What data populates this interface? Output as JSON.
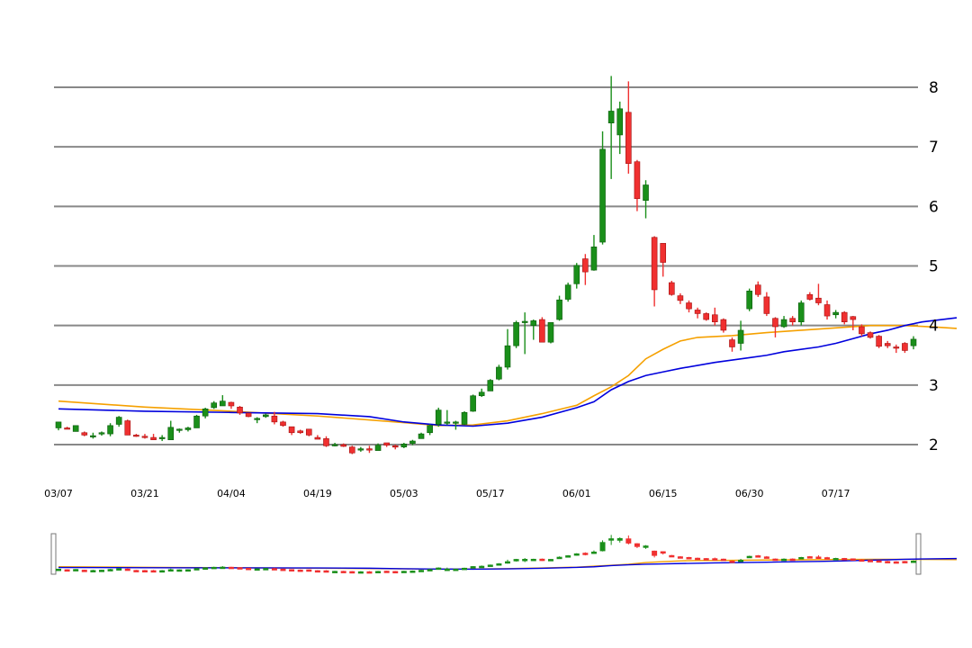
{
  "chart_data": {
    "type": "candlestick",
    "title": "",
    "ylim": [
      1.6,
      8.4
    ],
    "y_ticks": [
      2,
      3,
      4,
      5,
      6,
      7,
      8
    ],
    "y_tick_labels": [
      "2",
      "3",
      "4",
      "5",
      "6",
      "7",
      "8"
    ],
    "x_tick_labels": [
      "03/07",
      "03/21",
      "04/04",
      "04/19",
      "05/03",
      "05/17",
      "06/01",
      "06/15",
      "06/30",
      "07/17"
    ],
    "x_tick_index": [
      0,
      10,
      20,
      30,
      40,
      50,
      60,
      70,
      80,
      90
    ],
    "grid": "horizontal",
    "y_axis_side": "right",
    "colors": {
      "up": "#1a8f1a",
      "down": "#f03030",
      "ma_long": "#0000dd",
      "ma_short": "#f5a000",
      "grid": "#888888"
    },
    "candles": [
      [
        2.28,
        2.38,
        2.24,
        2.38
      ],
      [
        2.28,
        2.3,
        2.26,
        2.26
      ],
      [
        2.22,
        2.32,
        2.22,
        2.32
      ],
      [
        2.2,
        2.22,
        2.14,
        2.16
      ],
      [
        2.13,
        2.2,
        2.1,
        2.15
      ],
      [
        2.18,
        2.22,
        2.15,
        2.2
      ],
      [
        2.18,
        2.36,
        2.14,
        2.32
      ],
      [
        2.34,
        2.48,
        2.3,
        2.46
      ],
      [
        2.4,
        2.42,
        2.16,
        2.16
      ],
      [
        2.16,
        2.18,
        2.13,
        2.14
      ],
      [
        2.14,
        2.18,
        2.1,
        2.12
      ],
      [
        2.12,
        2.18,
        2.08,
        2.08
      ],
      [
        2.1,
        2.16,
        2.06,
        2.12
      ],
      [
        2.08,
        2.4,
        2.08,
        2.29
      ],
      [
        2.24,
        2.27,
        2.2,
        2.26
      ],
      [
        2.25,
        2.3,
        2.22,
        2.28
      ],
      [
        2.28,
        2.5,
        2.28,
        2.48
      ],
      [
        2.48,
        2.62,
        2.44,
        2.6
      ],
      [
        2.62,
        2.73,
        2.6,
        2.7
      ],
      [
        2.65,
        2.83,
        2.65,
        2.73
      ],
      [
        2.71,
        2.72,
        2.6,
        2.65
      ],
      [
        2.63,
        2.65,
        2.5,
        2.53
      ],
      [
        2.53,
        2.53,
        2.46,
        2.47
      ],
      [
        2.44,
        2.46,
        2.36,
        2.44
      ],
      [
        2.47,
        2.52,
        2.45,
        2.5
      ],
      [
        2.48,
        2.55,
        2.34,
        2.38
      ],
      [
        2.38,
        2.4,
        2.3,
        2.32
      ],
      [
        2.3,
        2.3,
        2.16,
        2.2
      ],
      [
        2.23,
        2.25,
        2.18,
        2.2
      ],
      [
        2.26,
        2.26,
        2.14,
        2.16
      ],
      [
        2.12,
        2.16,
        2.09,
        2.09
      ],
      [
        2.1,
        2.14,
        1.96,
        1.98
      ],
      [
        2.0,
        2.03,
        1.97,
        2.0
      ],
      [
        2.0,
        2.02,
        1.96,
        1.97
      ],
      [
        1.96,
        1.98,
        1.84,
        1.86
      ],
      [
        1.92,
        1.96,
        1.88,
        1.93
      ],
      [
        1.93,
        1.98,
        1.86,
        1.92
      ],
      [
        1.9,
        2.02,
        1.9,
        1.99
      ],
      [
        2.03,
        2.03,
        1.96,
        1.99
      ],
      [
        1.98,
        2.0,
        1.92,
        1.97
      ],
      [
        1.96,
        2.03,
        1.94,
        2.01
      ],
      [
        2.02,
        2.08,
        1.99,
        2.06
      ],
      [
        2.1,
        2.2,
        2.1,
        2.18
      ],
      [
        2.2,
        2.34,
        2.16,
        2.32
      ],
      [
        2.34,
        2.62,
        2.3,
        2.58
      ],
      [
        2.38,
        2.58,
        2.33,
        2.38
      ],
      [
        2.38,
        2.4,
        2.25,
        2.38
      ],
      [
        2.34,
        2.56,
        2.33,
        2.54
      ],
      [
        2.56,
        2.84,
        2.55,
        2.82
      ],
      [
        2.82,
        2.94,
        2.8,
        2.88
      ],
      [
        2.9,
        3.1,
        2.9,
        3.08
      ],
      [
        3.1,
        3.34,
        3.08,
        3.3
      ],
      [
        3.3,
        3.94,
        3.26,
        3.66
      ],
      [
        3.66,
        4.08,
        3.62,
        4.05
      ],
      [
        4.07,
        4.22,
        3.52,
        4.07
      ],
      [
        4.0,
        4.1,
        3.76,
        4.08
      ],
      [
        4.1,
        4.14,
        3.72,
        3.72
      ],
      [
        3.72,
        4.05,
        3.7,
        4.05
      ],
      [
        4.1,
        4.5,
        4.08,
        4.43
      ],
      [
        4.44,
        4.72,
        4.4,
        4.68
      ],
      [
        4.7,
        5.05,
        4.62,
        5.01
      ],
      [
        5.12,
        5.2,
        4.68,
        4.9
      ],
      [
        4.93,
        5.52,
        4.92,
        5.32
      ],
      [
        5.4,
        7.26,
        5.36,
        6.96
      ],
      [
        7.4,
        8.19,
        6.46,
        7.6
      ],
      [
        7.2,
        7.76,
        6.88,
        7.64
      ],
      [
        7.58,
        8.1,
        6.55,
        6.72
      ],
      [
        6.75,
        6.78,
        5.92,
        6.13
      ],
      [
        6.1,
        6.44,
        5.8,
        6.36
      ],
      [
        5.48,
        5.5,
        4.32,
        4.6
      ],
      [
        5.38,
        5.38,
        4.82,
        5.06
      ],
      [
        4.72,
        4.75,
        4.5,
        4.52
      ],
      [
        4.5,
        4.54,
        4.36,
        4.42
      ],
      [
        4.38,
        4.42,
        4.22,
        4.28
      ],
      [
        4.26,
        4.3,
        4.12,
        4.2
      ],
      [
        4.2,
        4.22,
        4.08,
        4.1
      ],
      [
        4.18,
        4.3,
        4.0,
        4.06
      ],
      [
        4.1,
        4.12,
        3.88,
        3.92
      ],
      [
        3.76,
        3.8,
        3.56,
        3.64
      ],
      [
        3.7,
        4.08,
        3.58,
        3.92
      ],
      [
        4.28,
        4.62,
        4.24,
        4.58
      ],
      [
        4.68,
        4.74,
        4.48,
        4.52
      ],
      [
        4.48,
        4.56,
        4.16,
        4.2
      ],
      [
        4.12,
        4.14,
        3.8,
        3.98
      ],
      [
        3.98,
        4.16,
        3.96,
        4.1
      ],
      [
        4.12,
        4.16,
        4.0,
        4.06
      ],
      [
        4.06,
        4.42,
        4.0,
        4.38
      ],
      [
        4.52,
        4.56,
        4.42,
        4.44
      ],
      [
        4.46,
        4.7,
        4.34,
        4.38
      ],
      [
        4.35,
        4.42,
        4.1,
        4.16
      ],
      [
        4.18,
        4.26,
        4.12,
        4.22
      ],
      [
        4.22,
        4.24,
        4.02,
        4.06
      ],
      [
        4.15,
        4.16,
        3.92,
        4.1
      ],
      [
        3.98,
        4.02,
        3.82,
        3.86
      ],
      [
        3.88,
        3.9,
        3.78,
        3.8
      ],
      [
        3.82,
        3.84,
        3.62,
        3.65
      ],
      [
        3.7,
        3.74,
        3.62,
        3.66
      ],
      [
        3.64,
        3.68,
        3.54,
        3.63
      ],
      [
        3.7,
        3.72,
        3.54,
        3.58
      ],
      [
        3.66,
        3.82,
        3.6,
        3.77
      ]
    ],
    "ma_long": [
      [
        0,
        2.6
      ],
      [
        10,
        2.56
      ],
      [
        20,
        2.54
      ],
      [
        30,
        2.52
      ],
      [
        36,
        2.47
      ],
      [
        40,
        2.38
      ],
      [
        44,
        2.33
      ],
      [
        48,
        2.31
      ],
      [
        52,
        2.36
      ],
      [
        56,
        2.46
      ],
      [
        60,
        2.62
      ],
      [
        62,
        2.72
      ],
      [
        64,
        2.92
      ],
      [
        66,
        3.06
      ],
      [
        68,
        3.16
      ],
      [
        70,
        3.22
      ],
      [
        72,
        3.28
      ],
      [
        76,
        3.38
      ],
      [
        80,
        3.46
      ],
      [
        82,
        3.5
      ],
      [
        84,
        3.56
      ],
      [
        88,
        3.64
      ],
      [
        90,
        3.7
      ],
      [
        92,
        3.78
      ],
      [
        94,
        3.86
      ],
      [
        96,
        3.92
      ],
      [
        98,
        4.0
      ],
      [
        100,
        4.06
      ],
      [
        104,
        4.13
      ]
    ],
    "ma_short": [
      [
        0,
        2.73
      ],
      [
        10,
        2.63
      ],
      [
        20,
        2.56
      ],
      [
        30,
        2.48
      ],
      [
        40,
        2.37
      ],
      [
        44,
        2.32
      ],
      [
        48,
        2.33
      ],
      [
        52,
        2.4
      ],
      [
        56,
        2.52
      ],
      [
        60,
        2.66
      ],
      [
        62,
        2.82
      ],
      [
        64,
        2.97
      ],
      [
        66,
        3.16
      ],
      [
        68,
        3.44
      ],
      [
        70,
        3.6
      ],
      [
        72,
        3.74
      ],
      [
        74,
        3.8
      ],
      [
        78,
        3.83
      ],
      [
        82,
        3.88
      ],
      [
        86,
        3.92
      ],
      [
        90,
        3.96
      ],
      [
        94,
        4.0
      ],
      [
        98,
        4.0
      ],
      [
        102,
        3.97
      ],
      [
        104,
        3.95
      ]
    ]
  }
}
